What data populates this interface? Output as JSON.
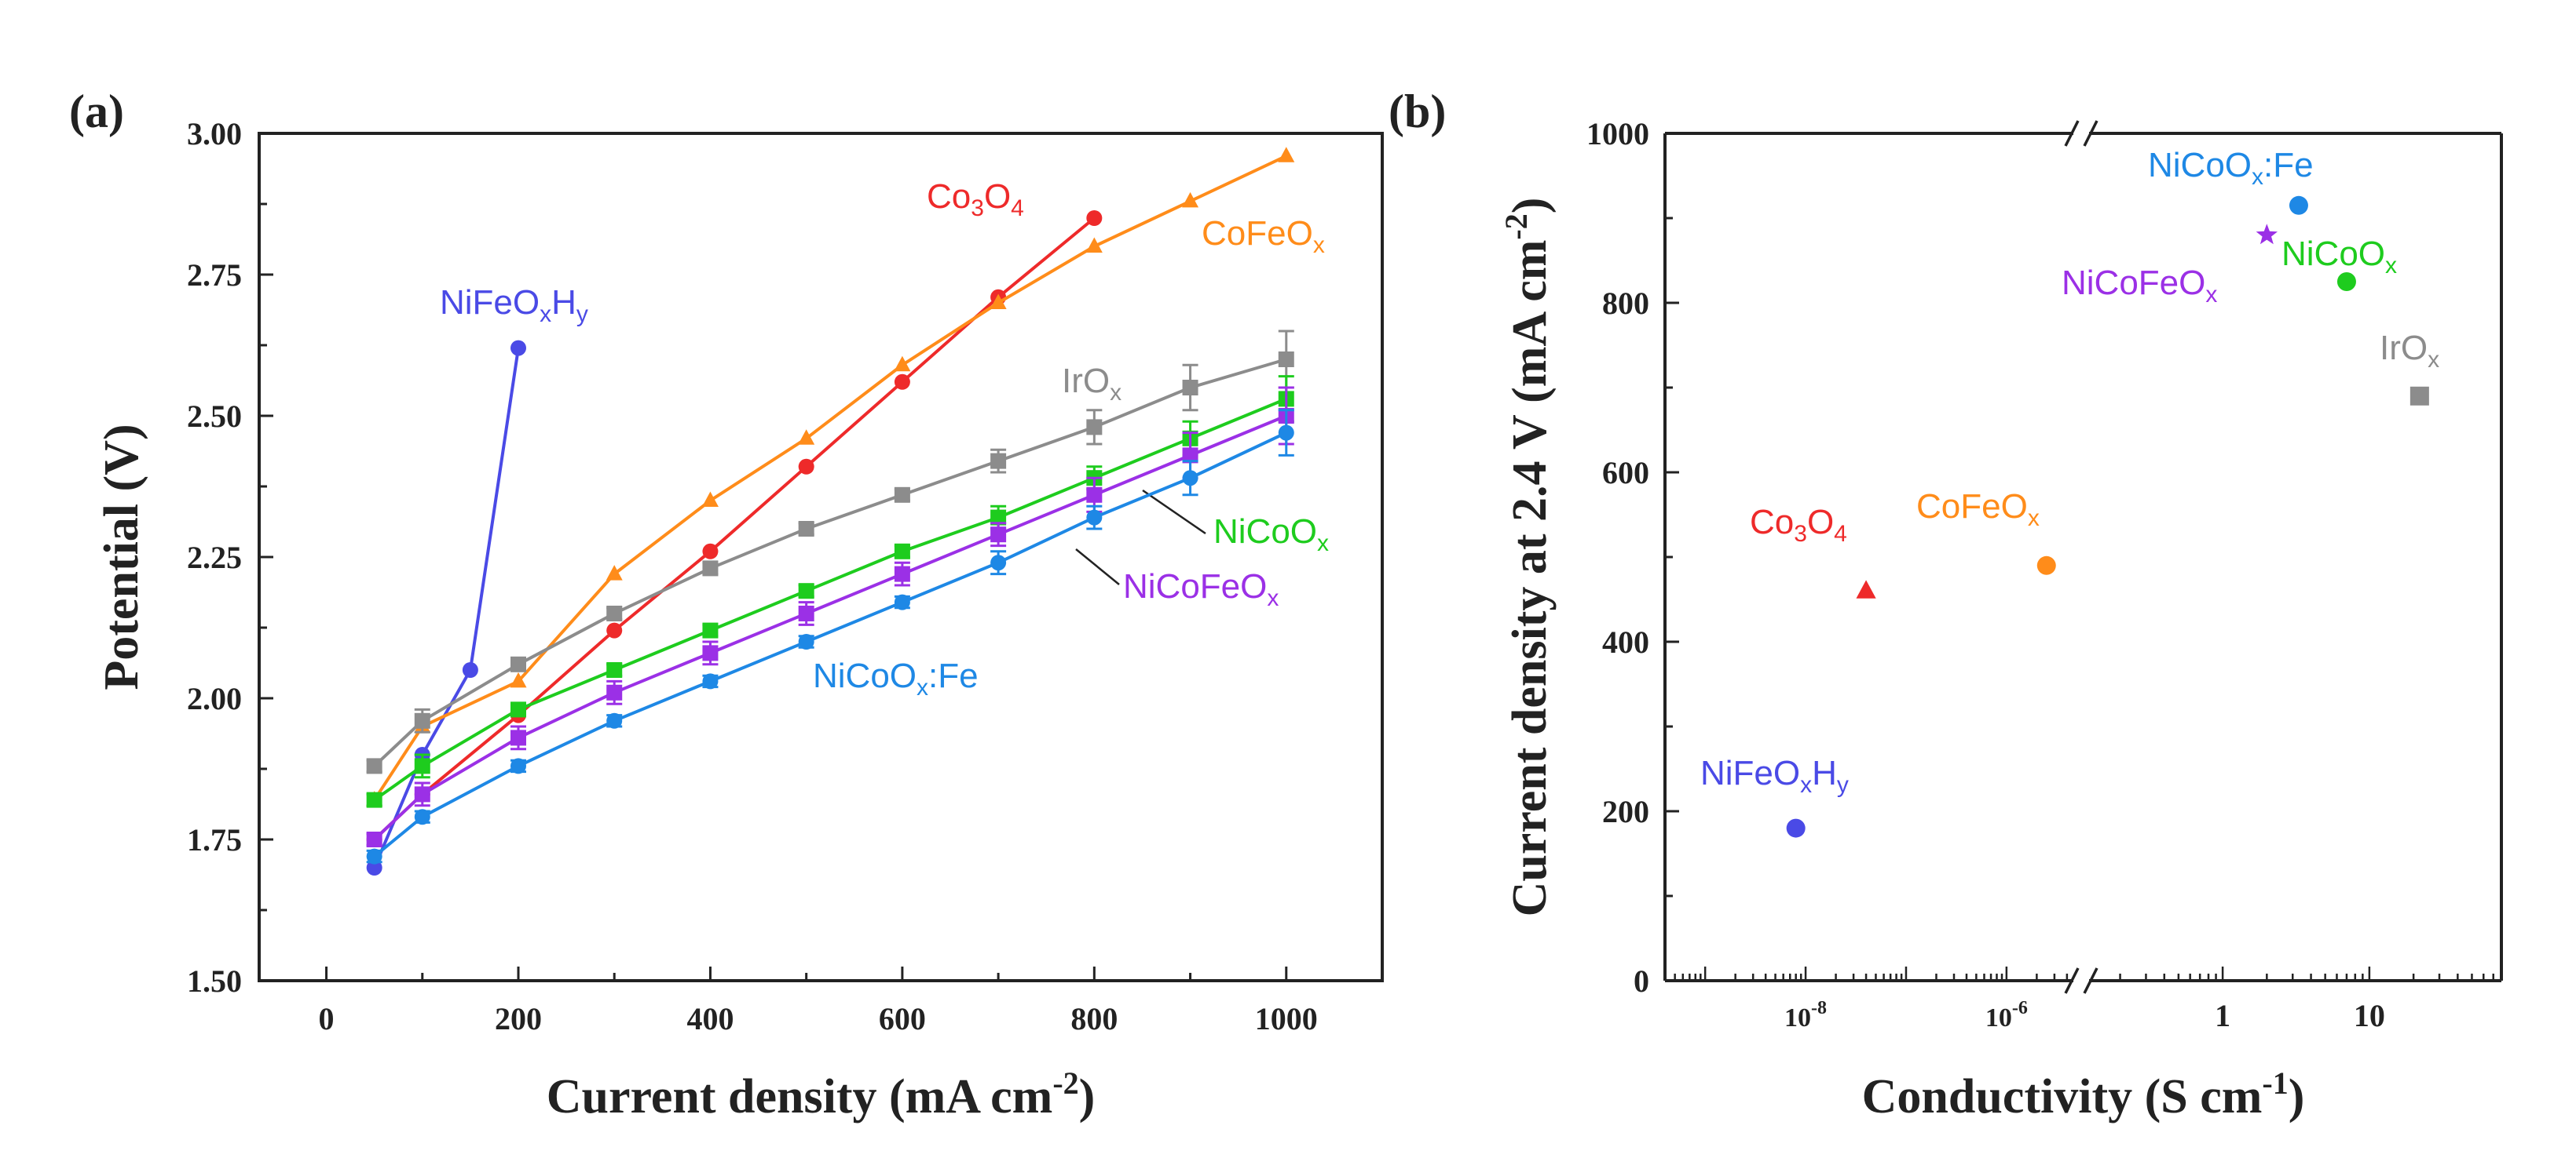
{
  "chart_data": [
    {
      "panel": "(a)",
      "type": "line",
      "xlabel": "Current density (mA cm-2)",
      "ylabel": "Potential (V)",
      "xlim": [
        -70,
        1100
      ],
      "ylim": [
        1.5,
        3.0
      ],
      "xticks": [
        "0",
        "200",
        "400",
        "600",
        "800",
        "1000"
      ],
      "yticks": [
        "1.50",
        "1.75",
        "2.00",
        "2.25",
        "2.50",
        "2.75",
        "3.00"
      ],
      "grid": false,
      "legend": "inline labels",
      "series": [
        {
          "name": "NiFeOxHy",
          "label_parts": [
            [
              "NiFeO",
              ""
            ],
            [
              "x",
              "sub"
            ],
            [
              "H",
              ""
            ],
            [
              "y",
              "sub"
            ]
          ],
          "color": "#4a4ae6",
          "marker": "circle",
          "x": [
            50,
            100,
            150,
            200
          ],
          "y": [
            1.7,
            1.9,
            2.05,
            2.62
          ],
          "err": []
        },
        {
          "name": "Co3O4",
          "label_parts": [
            [
              "Co",
              ""
            ],
            [
              "3",
              "sub"
            ],
            [
              "O",
              ""
            ],
            [
              "4",
              "sub"
            ]
          ],
          "color": "#ee2a2a",
          "marker": "circle",
          "x": [
            50,
            100,
            200,
            300,
            400,
            500,
            600,
            700,
            800
          ],
          "y": [
            1.75,
            1.83,
            1.97,
            2.12,
            2.26,
            2.41,
            2.56,
            2.71,
            2.85
          ],
          "err": []
        },
        {
          "name": "CoFeOx",
          "label_parts": [
            [
              "CoFeO",
              ""
            ],
            [
              "x",
              "sub"
            ]
          ],
          "color": "#ff8c1a",
          "marker": "triangle",
          "x": [
            50,
            100,
            200,
            300,
            400,
            500,
            600,
            700,
            800,
            900,
            1000
          ],
          "y": [
            1.82,
            1.95,
            2.03,
            2.22,
            2.35,
            2.46,
            2.59,
            2.7,
            2.8,
            2.88,
            2.96
          ],
          "err": []
        },
        {
          "name": "IrOx",
          "label_parts": [
            [
              "IrO",
              ""
            ],
            [
              "x",
              "sub"
            ]
          ],
          "color": "#8c8c8c",
          "marker": "square",
          "x": [
            50,
            100,
            200,
            300,
            400,
            500,
            600,
            700,
            800,
            900,
            1000
          ],
          "y": [
            1.88,
            1.96,
            2.06,
            2.15,
            2.23,
            2.3,
            2.36,
            2.42,
            2.48,
            2.55,
            2.6
          ],
          "err": [
            0.01,
            0.02,
            0.01,
            0.01,
            0.01,
            0.01,
            0.01,
            0.02,
            0.03,
            0.04,
            0.05
          ]
        },
        {
          "name": "NiCoOx",
          "label_parts": [
            [
              "NiCoO",
              ""
            ],
            [
              "x",
              "sub"
            ]
          ],
          "color": "#1ecc1e",
          "marker": "square",
          "x": [
            50,
            100,
            200,
            300,
            400,
            500,
            600,
            700,
            800,
            900,
            1000
          ],
          "y": [
            1.82,
            1.88,
            1.98,
            2.05,
            2.12,
            2.19,
            2.26,
            2.32,
            2.39,
            2.46,
            2.53
          ],
          "err": [
            0.01,
            0.02,
            0.01,
            0.01,
            0.01,
            0.01,
            0.01,
            0.02,
            0.02,
            0.03,
            0.04
          ]
        },
        {
          "name": "NiCoFeOx",
          "label_parts": [
            [
              "NiCoFeO",
              ""
            ],
            [
              "x",
              "sub"
            ]
          ],
          "color": "#9b30e6",
          "marker": "square",
          "x": [
            50,
            100,
            200,
            300,
            400,
            500,
            600,
            700,
            800,
            900,
            1000
          ],
          "y": [
            1.75,
            1.83,
            1.93,
            2.01,
            2.08,
            2.15,
            2.22,
            2.29,
            2.36,
            2.43,
            2.5
          ],
          "err": [
            0.01,
            0.02,
            0.02,
            0.02,
            0.02,
            0.02,
            0.02,
            0.02,
            0.03,
            0.04,
            0.05
          ]
        },
        {
          "name": "NiCoOx:Fe",
          "label_parts": [
            [
              "NiCoO",
              ""
            ],
            [
              "x",
              "sub"
            ],
            [
              ":Fe",
              ""
            ]
          ],
          "color": "#1e88e5",
          "marker": "circle",
          "x": [
            50,
            100,
            200,
            300,
            400,
            500,
            600,
            700,
            800,
            900,
            1000
          ],
          "y": [
            1.72,
            1.79,
            1.88,
            1.96,
            2.03,
            2.1,
            2.17,
            2.24,
            2.32,
            2.39,
            2.47
          ],
          "err": [
            0.01,
            0.01,
            0.01,
            0.01,
            0.01,
            0.01,
            0.01,
            0.02,
            0.02,
            0.03,
            0.04
          ]
        }
      ]
    },
    {
      "panel": "(b)",
      "type": "scatter",
      "xlabel": "Conductivity (S cm-1)",
      "ylabel": "Current density at 2.4 V (mA cm-2)",
      "xscale": "log (broken axis)",
      "ylim": [
        0,
        1000
      ],
      "xticks": [
        "10-8",
        "10-6",
        "1",
        "10"
      ],
      "yticks": [
        "0",
        "200",
        "400",
        "600",
        "800",
        "1000"
      ],
      "grid": false,
      "legend": "inline labels",
      "points": [
        {
          "name": "NiFeOxHy",
          "label_parts": [
            [
              "NiFeO",
              ""
            ],
            [
              "x",
              "sub"
            ],
            [
              "H",
              ""
            ],
            [
              "y",
              "sub"
            ]
          ],
          "color": "#4a4ae6",
          "marker": "circle",
          "x": 8e-09,
          "y": 180
        },
        {
          "name": "Co3O4",
          "label_parts": [
            [
              "Co",
              ""
            ],
            [
              "3",
              "sub"
            ],
            [
              "O",
              ""
            ],
            [
              "4",
              "sub"
            ]
          ],
          "color": "#ee2a2a",
          "marker": "triangle",
          "x": 4e-08,
          "y": 460
        },
        {
          "name": "CoFeOx",
          "label_parts": [
            [
              "CoFeO",
              ""
            ],
            [
              "x",
              "sub"
            ]
          ],
          "color": "#ff8c1a",
          "marker": "circle",
          "x": 2.5e-06,
          "y": 490
        },
        {
          "name": "NiCoOx:Fe",
          "label_parts": [
            [
              "NiCoO",
              ""
            ],
            [
              "x",
              "sub"
            ],
            [
              ":Fe",
              ""
            ]
          ],
          "color": "#1e88e5",
          "marker": "circle",
          "x": 3.3,
          "y": 915
        },
        {
          "name": "NiCoFeOx",
          "label_parts": [
            [
              "NiCoFeO",
              ""
            ],
            [
              "x",
              "sub"
            ]
          ],
          "color": "#9b30e6",
          "marker": "star",
          "x": 2.0,
          "y": 880
        },
        {
          "name": "NiCoOx",
          "label_parts": [
            [
              "NiCoO",
              ""
            ],
            [
              "x",
              "sub"
            ]
          ],
          "color": "#1ecc1e",
          "marker": "circle",
          "x": 7.0,
          "y": 825
        },
        {
          "name": "IrOx",
          "label_parts": [
            [
              "IrO",
              ""
            ],
            [
              "x",
              "sub"
            ]
          ],
          "color": "#8c8c8c",
          "marker": "square",
          "x": 22,
          "y": 690
        }
      ]
    }
  ]
}
